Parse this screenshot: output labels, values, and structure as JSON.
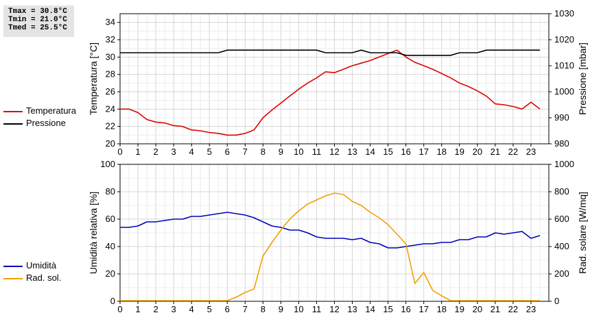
{
  "stats": {
    "tmax": "Tmax = 30.8°C",
    "tmin": "Tmin = 21.0°C",
    "tmed": "Tmed = 25.5°C"
  },
  "legend_top": [
    {
      "label": "Temperatura",
      "color": "#dd0000"
    },
    {
      "label": "Pressione",
      "color": "#000000"
    }
  ],
  "legend_bottom": [
    {
      "label": "Umidità",
      "color": "#0000bb"
    },
    {
      "label": "Rad. sol.",
      "color": "#f0a000"
    }
  ],
  "chart_data": [
    {
      "type": "line",
      "grid": true,
      "xlim": [
        0,
        24
      ],
      "xticks": [
        0,
        1,
        2,
        3,
        4,
        5,
        6,
        7,
        8,
        9,
        10,
        11,
        12,
        13,
        14,
        15,
        16,
        17,
        18,
        19,
        20,
        21,
        22,
        23
      ],
      "ylabel": "Temperatura [°C]",
      "ylim": [
        20,
        35
      ],
      "yticks": [
        20,
        22,
        24,
        26,
        28,
        30,
        32,
        34
      ],
      "y2label": "Pressione [mbar]",
      "y2lim": [
        980,
        1030
      ],
      "y2ticks": [
        980,
        990,
        1000,
        1010,
        1020,
        1030
      ],
      "series": [
        {
          "name": "Temperatura",
          "axis": "left",
          "color": "#dd0000",
          "x": [
            0,
            0.5,
            1,
            1.5,
            2,
            2.5,
            3,
            3.5,
            4,
            4.5,
            5,
            5.5,
            6,
            6.5,
            7,
            7.5,
            8,
            8.5,
            9,
            9.5,
            10,
            10.5,
            11,
            11.5,
            12,
            12.5,
            13,
            13.5,
            14,
            14.5,
            15,
            15.5,
            16,
            16.5,
            17,
            17.5,
            18,
            18.5,
            19,
            19.5,
            20,
            20.5,
            21,
            21.5,
            22,
            22.5,
            23,
            23.5
          ],
          "values": [
            24.0,
            24.0,
            23.6,
            22.8,
            22.5,
            22.4,
            22.1,
            22.0,
            21.6,
            21.5,
            21.3,
            21.2,
            21.0,
            21.0,
            21.2,
            21.6,
            23.0,
            23.9,
            24.7,
            25.5,
            26.3,
            27.0,
            27.6,
            28.3,
            28.2,
            28.6,
            29.0,
            29.3,
            29.6,
            30.0,
            30.4,
            30.8,
            30.0,
            29.4,
            29.0,
            28.6,
            28.1,
            27.6,
            27.0,
            26.6,
            26.1,
            25.5,
            24.6,
            24.5,
            24.3,
            24.0,
            24.8,
            24.0
          ]
        },
        {
          "name": "Pressione",
          "axis": "right",
          "color": "#000000",
          "x": [
            0,
            0.5,
            1,
            1.5,
            2,
            2.5,
            3,
            3.5,
            4,
            4.5,
            5,
            5.5,
            6,
            6.5,
            7,
            7.5,
            8,
            8.5,
            9,
            9.5,
            10,
            10.5,
            11,
            11.5,
            12,
            12.5,
            13,
            13.5,
            14,
            14.5,
            15,
            15.5,
            16,
            16.5,
            17,
            17.5,
            18,
            18.5,
            19,
            19.5,
            20,
            20.5,
            21,
            21.5,
            22,
            22.5,
            23,
            23.5
          ],
          "values": [
            1015,
            1015,
            1015,
            1015,
            1015,
            1015,
            1015,
            1015,
            1015,
            1015,
            1015,
            1015,
            1016,
            1016,
            1016,
            1016,
            1016,
            1016,
            1016,
            1016,
            1016,
            1016,
            1016,
            1015,
            1015,
            1015,
            1015,
            1016,
            1015,
            1015,
            1015,
            1015,
            1014,
            1014,
            1014,
            1014,
            1014,
            1014,
            1015,
            1015,
            1015,
            1016,
            1016,
            1016,
            1016,
            1016,
            1016,
            1016
          ]
        }
      ]
    },
    {
      "type": "line",
      "grid": true,
      "xlim": [
        0,
        24
      ],
      "xticks": [
        0,
        1,
        2,
        3,
        4,
        5,
        6,
        7,
        8,
        9,
        10,
        11,
        12,
        13,
        14,
        15,
        16,
        17,
        18,
        19,
        20,
        21,
        22,
        23
      ],
      "ylabel": "Umidità relativa [%]",
      "ylim": [
        0,
        100
      ],
      "yticks": [
        0,
        20,
        40,
        60,
        80,
        100
      ],
      "y2label": "Rad. solare [W/mq]",
      "y2lim": [
        0,
        1000
      ],
      "y2ticks": [
        0,
        200,
        400,
        600,
        800,
        1000
      ],
      "series": [
        {
          "name": "Umidità",
          "axis": "left",
          "color": "#0000bb",
          "x": [
            0,
            0.5,
            1,
            1.5,
            2,
            2.5,
            3,
            3.5,
            4,
            4.5,
            5,
            5.5,
            6,
            6.5,
            7,
            7.5,
            8,
            8.5,
            9,
            9.5,
            10,
            10.5,
            11,
            11.5,
            12,
            12.5,
            13,
            13.5,
            14,
            14.5,
            15,
            15.5,
            16,
            16.5,
            17,
            17.5,
            18,
            18.5,
            19,
            19.5,
            20,
            20.5,
            21,
            21.5,
            22,
            22.5,
            23,
            23.5
          ],
          "values": [
            54,
            54,
            55,
            58,
            58,
            59,
            60,
            60,
            62,
            62,
            63,
            64,
            65,
            64,
            63,
            61,
            58,
            55,
            54,
            52,
            52,
            50,
            47,
            46,
            46,
            46,
            45,
            46,
            43,
            42,
            39,
            39,
            40,
            41,
            42,
            42,
            43,
            43,
            45,
            45,
            47,
            47,
            50,
            49,
            50,
            51,
            46,
            48
          ]
        },
        {
          "name": "Rad. sol.",
          "axis": "right",
          "color": "#f0a000",
          "x": [
            0,
            0.5,
            1,
            1.5,
            2,
            2.5,
            3,
            3.5,
            4,
            4.5,
            5,
            5.5,
            6,
            6.5,
            7,
            7.5,
            8,
            8.5,
            9,
            9.5,
            10,
            10.5,
            11,
            11.5,
            12,
            12.5,
            13,
            13.5,
            14,
            14.5,
            15,
            15.5,
            16,
            16.5,
            17,
            17.5,
            18,
            18.5,
            19,
            19.5,
            20,
            20.5,
            21,
            21.5,
            22,
            22.5,
            23,
            23.5
          ],
          "values": [
            5,
            5,
            5,
            5,
            5,
            5,
            5,
            5,
            5,
            5,
            5,
            5,
            5,
            30,
            65,
            90,
            330,
            430,
            520,
            600,
            660,
            710,
            740,
            770,
            790,
            780,
            730,
            700,
            650,
            610,
            560,
            490,
            420,
            130,
            210,
            80,
            40,
            5,
            5,
            5,
            5,
            5,
            5,
            5,
            5,
            5,
            5,
            5
          ]
        }
      ]
    }
  ]
}
